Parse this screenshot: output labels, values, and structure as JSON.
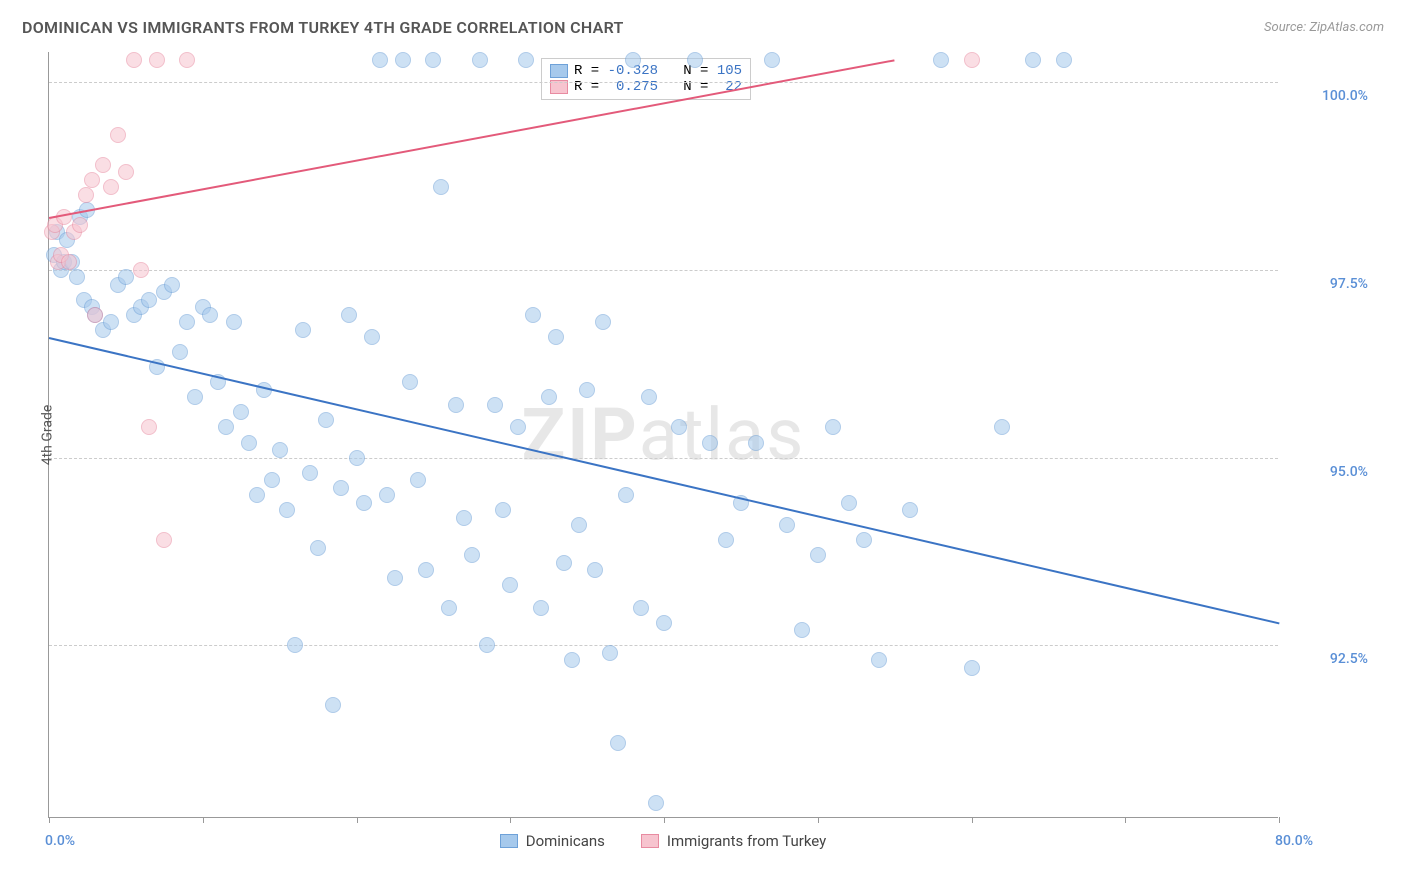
{
  "header": {
    "title": "DOMINICAN VS IMMIGRANTS FROM TURKEY 4TH GRADE CORRELATION CHART",
    "source_prefix": "Source: ",
    "source_name": "ZipAtlas.com"
  },
  "watermark": {
    "bold": "ZIP",
    "rest": "atlas"
  },
  "chart": {
    "type": "scatter",
    "background_color": "#ffffff",
    "grid_color": "#cccccc",
    "axis_color": "#999999",
    "yaxis_title": "4th Grade",
    "xlim": [
      0,
      80
    ],
    "ylim": [
      90.2,
      100.4
    ],
    "xticks": [
      0,
      10,
      20,
      30,
      40,
      50,
      60,
      70,
      80
    ],
    "yticks": [
      92.5,
      95.0,
      97.5,
      100.0
    ],
    "xtick_labels": {
      "0": "0.0%",
      "80": "80.0%"
    },
    "ytick_labels": [
      "92.5%",
      "95.0%",
      "97.5%",
      "100.0%"
    ],
    "ytick_color": "#5a8fd6",
    "xtick_color": "#5a8fd6",
    "marker_radius": 8,
    "marker_opacity": 0.55,
    "trend_width": 2,
    "series": [
      {
        "name": "Dominicans",
        "color": "#a6c9ec",
        "border": "#6ea1d8",
        "trend_color": "#3b74c4",
        "R": "-0.328",
        "N": "105",
        "trend": {
          "x1": 0,
          "y1": 96.6,
          "x2": 80,
          "y2": 92.8
        },
        "points": [
          [
            0.3,
            97.7
          ],
          [
            0.5,
            98.0
          ],
          [
            0.8,
            97.5
          ],
          [
            1.0,
            97.6
          ],
          [
            1.2,
            97.9
          ],
          [
            1.5,
            97.6
          ],
          [
            1.8,
            97.4
          ],
          [
            2.0,
            98.2
          ],
          [
            2.3,
            97.1
          ],
          [
            2.5,
            98.3
          ],
          [
            2.8,
            97.0
          ],
          [
            3.0,
            96.9
          ],
          [
            3.5,
            96.7
          ],
          [
            4.0,
            96.8
          ],
          [
            4.5,
            97.3
          ],
          [
            5.0,
            97.4
          ],
          [
            5.5,
            96.9
          ],
          [
            6.0,
            97.0
          ],
          [
            6.5,
            97.1
          ],
          [
            7.0,
            96.2
          ],
          [
            7.5,
            97.2
          ],
          [
            8.0,
            97.3
          ],
          [
            8.5,
            96.4
          ],
          [
            9.0,
            96.8
          ],
          [
            9.5,
            95.8
          ],
          [
            10.0,
            97.0
          ],
          [
            10.5,
            96.9
          ],
          [
            11.0,
            96.0
          ],
          [
            11.5,
            95.4
          ],
          [
            12.0,
            96.8
          ],
          [
            12.5,
            95.6
          ],
          [
            13.0,
            95.2
          ],
          [
            13.5,
            94.5
          ],
          [
            14.0,
            95.9
          ],
          [
            14.5,
            94.7
          ],
          [
            15.0,
            95.1
          ],
          [
            15.5,
            94.3
          ],
          [
            16.0,
            92.5
          ],
          [
            16.5,
            96.7
          ],
          [
            17.0,
            94.8
          ],
          [
            17.5,
            93.8
          ],
          [
            18.0,
            95.5
          ],
          [
            18.5,
            91.7
          ],
          [
            19.0,
            94.6
          ],
          [
            19.5,
            96.9
          ],
          [
            20.0,
            95.0
          ],
          [
            20.5,
            94.4
          ],
          [
            21.0,
            96.6
          ],
          [
            21.5,
            100.3
          ],
          [
            22.0,
            94.5
          ],
          [
            22.5,
            93.4
          ],
          [
            23.0,
            100.3
          ],
          [
            23.5,
            96.0
          ],
          [
            24.0,
            94.7
          ],
          [
            24.5,
            93.5
          ],
          [
            25.0,
            100.3
          ],
          [
            25.5,
            98.6
          ],
          [
            26.0,
            93.0
          ],
          [
            26.5,
            95.7
          ],
          [
            27.0,
            94.2
          ],
          [
            27.5,
            93.7
          ],
          [
            28.0,
            100.3
          ],
          [
            28.5,
            92.5
          ],
          [
            29.0,
            95.7
          ],
          [
            29.5,
            94.3
          ],
          [
            30.0,
            93.3
          ],
          [
            30.5,
            95.4
          ],
          [
            31.0,
            100.3
          ],
          [
            31.5,
            96.9
          ],
          [
            32.0,
            93.0
          ],
          [
            32.5,
            95.8
          ],
          [
            33.0,
            96.6
          ],
          [
            33.5,
            93.6
          ],
          [
            34.0,
            92.3
          ],
          [
            34.5,
            94.1
          ],
          [
            35.0,
            95.9
          ],
          [
            35.5,
            93.5
          ],
          [
            36.0,
            96.8
          ],
          [
            36.5,
            92.4
          ],
          [
            37.0,
            91.2
          ],
          [
            37.5,
            94.5
          ],
          [
            38.0,
            100.3
          ],
          [
            38.5,
            93.0
          ],
          [
            39.0,
            95.8
          ],
          [
            39.5,
            90.4
          ],
          [
            40.0,
            92.8
          ],
          [
            41.0,
            95.4
          ],
          [
            42.0,
            100.3
          ],
          [
            43.0,
            95.2
          ],
          [
            44.0,
            93.9
          ],
          [
            45.0,
            94.4
          ],
          [
            46.0,
            95.2
          ],
          [
            47.0,
            100.3
          ],
          [
            48.0,
            94.1
          ],
          [
            49.0,
            92.7
          ],
          [
            50.0,
            93.7
          ],
          [
            51.0,
            95.4
          ],
          [
            52.0,
            94.4
          ],
          [
            53.0,
            93.9
          ],
          [
            54.0,
            92.3
          ],
          [
            56.0,
            94.3
          ],
          [
            58.0,
            100.3
          ],
          [
            60.0,
            92.2
          ],
          [
            62.0,
            95.4
          ],
          [
            64.0,
            100.3
          ],
          [
            66.0,
            100.3
          ]
        ]
      },
      {
        "name": "Immigrants from Turkey",
        "color": "#f7c4cf",
        "border": "#e88ba1",
        "trend_color": "#e35a7a",
        "R": "0.275",
        "N": "22",
        "trend": {
          "x1": 0,
          "y1": 98.2,
          "x2": 55,
          "y2": 100.3
        },
        "points": [
          [
            0.2,
            98.0
          ],
          [
            0.4,
            98.1
          ],
          [
            0.6,
            97.6
          ],
          [
            0.8,
            97.7
          ],
          [
            1.0,
            98.2
          ],
          [
            1.3,
            97.6
          ],
          [
            1.6,
            98.0
          ],
          [
            2.0,
            98.1
          ],
          [
            2.4,
            98.5
          ],
          [
            2.8,
            98.7
          ],
          [
            3.0,
            96.9
          ],
          [
            3.5,
            98.9
          ],
          [
            4.0,
            98.6
          ],
          [
            4.5,
            99.3
          ],
          [
            5.0,
            98.8
          ],
          [
            5.5,
            100.3
          ],
          [
            6.0,
            97.5
          ],
          [
            6.5,
            95.4
          ],
          [
            7.0,
            100.3
          ],
          [
            7.5,
            93.9
          ],
          [
            9.0,
            100.3
          ],
          [
            60.0,
            100.3
          ]
        ]
      }
    ],
    "legend_bottom": [
      "Dominicans",
      "Immigrants from Turkey"
    ]
  }
}
